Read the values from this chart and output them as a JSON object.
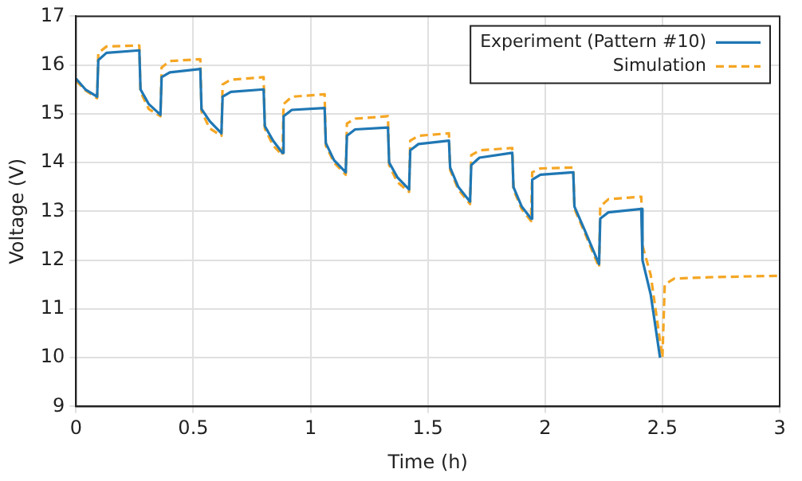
{
  "chart_data": {
    "type": "line",
    "xlabel": "Time (h)",
    "ylabel": "Voltage (V)",
    "xlim": [
      0,
      3
    ],
    "xticks": [
      0,
      0.5,
      1,
      1.5,
      2,
      2.5,
      3
    ],
    "ylim": [
      9,
      17
    ],
    "yticks": [
      9,
      10,
      11,
      12,
      13,
      14,
      15,
      16,
      17
    ],
    "grid": true,
    "legend": "top right",
    "marker": "none",
    "series": [
      {
        "name": "Experiment (Pattern #10)",
        "color": "#1f77b4",
        "line_style": "solid",
        "x": [
          0,
          0.04,
          0.09,
          0.095,
          0.13,
          0.27,
          0.275,
          0.31,
          0.36,
          0.365,
          0.4,
          0.53,
          0.535,
          0.57,
          0.62,
          0.625,
          0.66,
          0.8,
          0.805,
          0.84,
          0.88,
          0.885,
          0.92,
          1.06,
          1.065,
          1.1,
          1.15,
          1.155,
          1.19,
          1.33,
          1.335,
          1.37,
          1.42,
          1.425,
          1.46,
          1.59,
          1.595,
          1.63,
          1.68,
          1.685,
          1.72,
          1.86,
          1.865,
          1.9,
          1.94,
          1.945,
          1.98,
          2.12,
          2.125,
          2.17,
          2.23,
          2.235,
          2.27,
          2.41,
          2.415,
          2.45,
          2.49
        ],
        "values": [
          15.72,
          15.5,
          15.35,
          16.1,
          16.25,
          16.3,
          15.5,
          15.2,
          14.98,
          15.75,
          15.85,
          15.92,
          15.1,
          14.85,
          14.6,
          15.35,
          15.45,
          15.5,
          14.75,
          14.45,
          14.2,
          14.95,
          15.08,
          15.12,
          14.4,
          14.05,
          13.8,
          14.55,
          14.68,
          14.72,
          14,
          13.7,
          13.45,
          14.25,
          14.38,
          14.45,
          13.9,
          13.5,
          13.2,
          13.95,
          14.1,
          14.2,
          13.5,
          13.1,
          12.85,
          13.65,
          13.75,
          13.8,
          13.1,
          12.6,
          11.92,
          12.85,
          12.98,
          13.05,
          12,
          11.3,
          10
        ]
      },
      {
        "name": "Simulation",
        "color": "#f5a623",
        "line_style": "dashed",
        "x": [
          0,
          0.04,
          0.09,
          0.095,
          0.13,
          0.27,
          0.275,
          0.31,
          0.36,
          0.365,
          0.4,
          0.53,
          0.535,
          0.57,
          0.62,
          0.625,
          0.66,
          0.8,
          0.805,
          0.84,
          0.88,
          0.885,
          0.92,
          1.06,
          1.065,
          1.1,
          1.15,
          1.155,
          1.19,
          1.33,
          1.335,
          1.37,
          1.42,
          1.425,
          1.46,
          1.59,
          1.595,
          1.63,
          1.68,
          1.685,
          1.72,
          1.86,
          1.865,
          1.9,
          1.94,
          1.945,
          1.98,
          2.12,
          2.125,
          2.17,
          2.23,
          2.235,
          2.27,
          2.41,
          2.415,
          2.45,
          2.5,
          2.51,
          2.55,
          2.7,
          3
        ],
        "values": [
          15.68,
          15.48,
          15.32,
          16.25,
          16.38,
          16.4,
          15.45,
          15.1,
          14.95,
          15.95,
          16.08,
          16.12,
          15.05,
          14.7,
          14.55,
          15.6,
          15.7,
          15.75,
          14.7,
          14.35,
          14.15,
          15.2,
          15.35,
          15.4,
          14.35,
          14,
          13.75,
          14.8,
          14.9,
          14.95,
          13.95,
          13.6,
          13.4,
          14.45,
          14.55,
          14.6,
          13.85,
          13.45,
          13.15,
          14.15,
          14.25,
          14.3,
          13.45,
          13.05,
          12.8,
          13.8,
          13.88,
          13.9,
          13.05,
          12.55,
          11.85,
          13.1,
          13.25,
          13.3,
          12.3,
          11.7,
          10,
          11.5,
          11.62,
          11.65,
          11.68
        ]
      }
    ]
  }
}
